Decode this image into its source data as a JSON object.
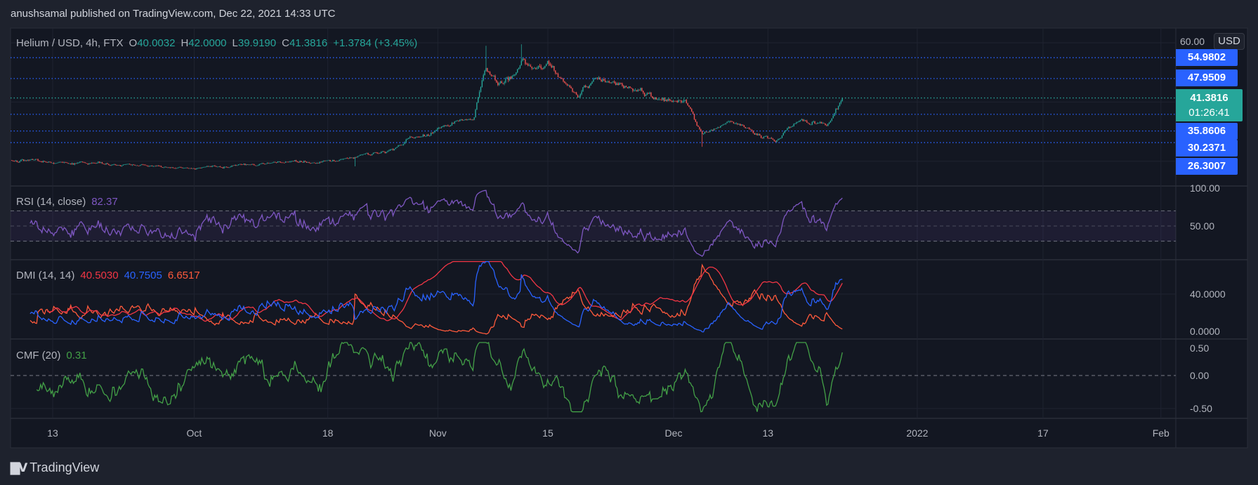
{
  "header": {
    "attribution": "anushsamal published on TradingView.com, Dec 22, 2021 14:33 UTC"
  },
  "legend": {
    "symbol": "Helium / USD, 4h, FTX",
    "o_label": "O",
    "o": "40.0032",
    "h_label": "H",
    "h": "42.0000",
    "l_label": "L",
    "l": "39.9190",
    "c_label": "C",
    "c": "41.3816",
    "change": "+1.3784 (+3.45%)"
  },
  "price_axis": {
    "currency": "USD",
    "top_tick": "60.00",
    "levels": [
      "54.9802",
      "47.9509",
      "35.8606",
      "30.2371",
      "26.3007"
    ],
    "current_price": "41.3816",
    "countdown": "01:26:41"
  },
  "rsi": {
    "title": "RSI (14, close)",
    "value": "82.37",
    "ticks": [
      "100.00",
      "50.00"
    ]
  },
  "dmi": {
    "title": "DMI (14, 14)",
    "adx": "40.5030",
    "plus_di": "40.7505",
    "minus_di": "6.6517",
    "ticks": [
      "40.0000",
      "0.0000"
    ]
  },
  "cmf": {
    "title": "CMF (20)",
    "value": "0.31",
    "ticks": [
      "0.50",
      "0.00",
      "-0.50"
    ]
  },
  "footer": {
    "logo_text": "TradingView"
  },
  "colors": {
    "up": "#26a69a",
    "down": "#ef5350",
    "level": "#2962ff",
    "rsi": "#7e57c2",
    "adx": "#f23645",
    "plus_di": "#2962ff",
    "minus_di": "#ff5a3c",
    "cmf": "#43a047"
  },
  "chart_data": {
    "type": "candlestick",
    "x_unit": "days since 2021-09-01",
    "price": {
      "anchors": [
        [
          6.8,
          20.4
        ],
        [
          30,
          17.8
        ],
        [
          47,
          20.4
        ],
        [
          54.3,
          23
        ],
        [
          61,
          31.3
        ],
        [
          65.6,
          33.9
        ],
        [
          67.1,
          54
        ],
        [
          68.6,
          44.8
        ],
        [
          71.7,
          52.8
        ],
        [
          75.2,
          52.8
        ],
        [
          78.8,
          42
        ],
        [
          80.9,
          47.4
        ],
        [
          86,
          46
        ],
        [
          89,
          40.8
        ],
        [
          92.6,
          39.3
        ],
        [
          94.7,
          28.4
        ],
        [
          97.8,
          33.9
        ],
        [
          101.3,
          29.8
        ],
        [
          104.2,
          27
        ],
        [
          106.4,
          33.9
        ],
        [
          110.5,
          31.3
        ],
        [
          112.5,
          41.3816
        ]
      ],
      "wicks": [
        [
          67.1,
          "high",
          59.0
        ],
        [
          71.7,
          "high",
          59.5
        ],
        [
          94.6,
          "low",
          24.9
        ],
        [
          50.4,
          "low",
          18.3
        ]
      ],
      "ylim": [
        20,
        60
      ],
      "levels": [
        54.9802,
        47.9509,
        35.8606,
        30.2371,
        26.3007
      ],
      "last_close": 41.3816
    },
    "rsi": {
      "period": 14,
      "bands": [
        30,
        50,
        70
      ],
      "ylim": [
        0,
        100
      ],
      "last": 82.37
    },
    "dmi": {
      "period": 14,
      "ticks": [
        0,
        40
      ],
      "last": {
        "adx": 40.503,
        "plus_di": 40.7505,
        "minus_di": 6.6517
      }
    },
    "cmf": {
      "period": 20,
      "ticks": [
        -0.5,
        0,
        0.5
      ],
      "last": 0.31
    },
    "time_ticks": [
      {
        "label": "13",
        "day": 12
      },
      {
        "label": "Oct",
        "day": 30
      },
      {
        "label": "18",
        "day": 47
      },
      {
        "label": "Nov",
        "day": 61
      },
      {
        "label": "15",
        "day": 75
      },
      {
        "label": "Dec",
        "day": 91
      },
      {
        "label": "13",
        "day": 103
      },
      {
        "label": "2022",
        "day": 122
      },
      {
        "label": "17",
        "day": 138
      },
      {
        "label": "Feb",
        "day": 153
      }
    ]
  }
}
